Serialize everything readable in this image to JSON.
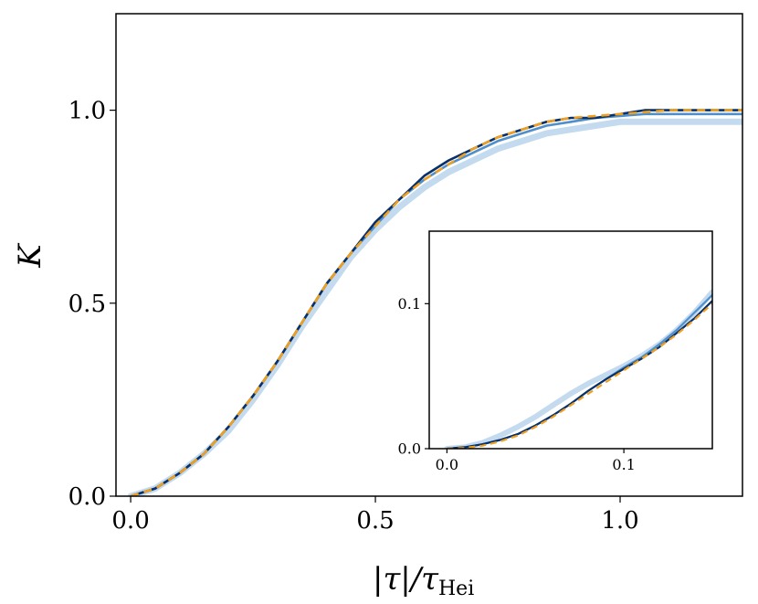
{
  "chart_data": [
    {
      "type": "line",
      "panel": "main",
      "xlabel": "|τ|/τ",
      "xlabel_subscript": "Hei",
      "ylabel": "K",
      "xlim": [
        -0.03,
        1.25
      ],
      "ylim": [
        0.0,
        1.25
      ],
      "xticks": [
        0.0,
        0.5,
        1.0
      ],
      "yticks": [
        0.0,
        0.5,
        1.0
      ],
      "xtick_labels": [
        "0.0",
        "0.5",
        "1.0"
      ],
      "ytick_labels": [
        "0.0",
        "0.5",
        "1.0"
      ],
      "x": [
        0.0,
        0.05,
        0.1,
        0.15,
        0.2,
        0.25,
        0.3,
        0.35,
        0.4,
        0.45,
        0.5,
        0.55,
        0.6,
        0.65,
        0.7,
        0.75,
        0.8,
        0.85,
        0.9,
        0.95,
        1.0,
        1.05,
        1.1,
        1.15,
        1.2,
        1.25
      ],
      "series": [
        {
          "name": "light blue band",
          "color": "#a9cbe8",
          "style": "band",
          "values": [
            0.0,
            0.02,
            0.06,
            0.11,
            0.17,
            0.25,
            0.34,
            0.44,
            0.53,
            0.62,
            0.69,
            0.75,
            0.8,
            0.84,
            0.87,
            0.9,
            0.92,
            0.94,
            0.95,
            0.96,
            0.97,
            0.97,
            0.97,
            0.97,
            0.97,
            0.97
          ]
        },
        {
          "name": "medium blue",
          "color": "#4f8fcb",
          "style": "solid",
          "values": [
            0.0,
            0.02,
            0.06,
            0.11,
            0.18,
            0.26,
            0.35,
            0.45,
            0.55,
            0.63,
            0.7,
            0.77,
            0.82,
            0.86,
            0.89,
            0.92,
            0.94,
            0.96,
            0.97,
            0.98,
            0.985,
            0.99,
            0.99,
            0.99,
            0.99,
            0.99
          ]
        },
        {
          "name": "dark navy",
          "color": "#08306b",
          "style": "solid",
          "values": [
            0.0,
            0.02,
            0.06,
            0.11,
            0.18,
            0.26,
            0.35,
            0.45,
            0.55,
            0.63,
            0.71,
            0.77,
            0.83,
            0.87,
            0.9,
            0.93,
            0.95,
            0.97,
            0.98,
            0.98,
            0.99,
            1.0,
            1.0,
            1.0,
            1.0,
            1.0
          ]
        },
        {
          "name": "orange dashed fit",
          "color": "#f0a020",
          "style": "dashed",
          "values": [
            0.0,
            0.02,
            0.06,
            0.11,
            0.18,
            0.26,
            0.35,
            0.45,
            0.55,
            0.63,
            0.7,
            0.77,
            0.82,
            0.86,
            0.9,
            0.93,
            0.95,
            0.97,
            0.98,
            0.985,
            0.99,
            0.995,
            1.0,
            1.0,
            1.0,
            1.0
          ]
        }
      ]
    },
    {
      "type": "line",
      "panel": "inset",
      "xlim": [
        -0.01,
        0.15
      ],
      "ylim": [
        0.0,
        0.15
      ],
      "xticks": [
        0.0,
        0.1
      ],
      "yticks": [
        0.0,
        0.1
      ],
      "xtick_labels": [
        "0.0",
        "0.1"
      ],
      "ytick_labels": [
        "0.0",
        "0.1"
      ],
      "x": [
        0.0,
        0.01,
        0.02,
        0.03,
        0.04,
        0.05,
        0.06,
        0.07,
        0.08,
        0.09,
        0.1,
        0.11,
        0.12,
        0.13,
        0.14,
        0.15
      ],
      "series": [
        {
          "name": "light blue band",
          "color": "#a9cbe8",
          "style": "band",
          "values": [
            0.0,
            0.001,
            0.004,
            0.009,
            0.015,
            0.022,
            0.03,
            0.038,
            0.045,
            0.051,
            0.057,
            0.064,
            0.072,
            0.082,
            0.094,
            0.108
          ]
        },
        {
          "name": "medium blue",
          "color": "#4f8fcb",
          "style": "solid",
          "values": [
            0.0,
            0.001,
            0.003,
            0.006,
            0.01,
            0.016,
            0.023,
            0.031,
            0.04,
            0.048,
            0.056,
            0.063,
            0.072,
            0.082,
            0.094,
            0.106
          ]
        },
        {
          "name": "dark navy",
          "color": "#08306b",
          "style": "solid",
          "values": [
            0.0,
            0.001,
            0.003,
            0.006,
            0.01,
            0.016,
            0.023,
            0.031,
            0.04,
            0.048,
            0.055,
            0.062,
            0.07,
            0.08,
            0.09,
            0.102
          ]
        },
        {
          "name": "orange dashed fit",
          "color": "#f0a020",
          "style": "dashed",
          "values": [
            0.0,
            0.0005,
            0.002,
            0.005,
            0.009,
            0.015,
            0.022,
            0.03,
            0.038,
            0.046,
            0.054,
            0.062,
            0.07,
            0.079,
            0.089,
            0.1
          ]
        }
      ]
    }
  ]
}
